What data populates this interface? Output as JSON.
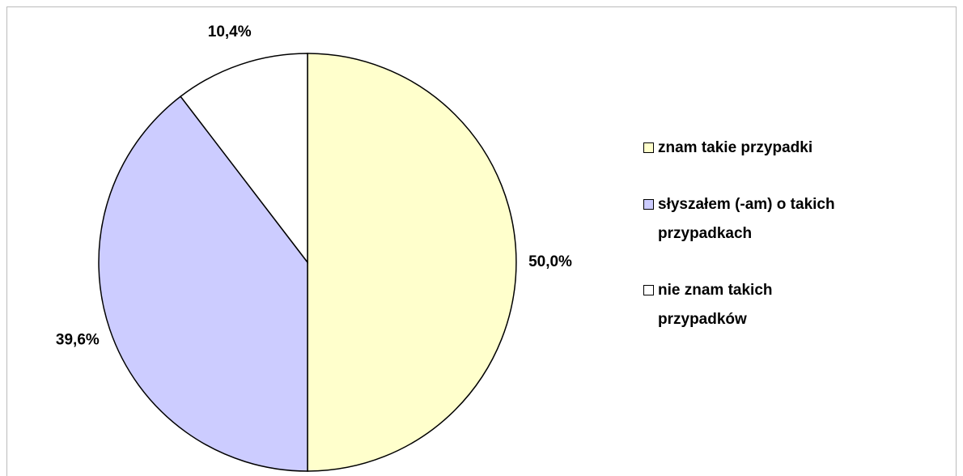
{
  "chart_data": {
    "type": "pie",
    "categories": [
      "znam takie przypadki",
      "słyszałem (-am) o takich przypadkach",
      "nie znam takich przypadków"
    ],
    "values": [
      50.0,
      39.6,
      10.4
    ],
    "value_labels": [
      "50,0%",
      "39,6%",
      "10,4%"
    ],
    "colors": [
      "#FFFFCC",
      "#CCCCFF",
      "#FFFFFF"
    ],
    "legend": "right"
  }
}
